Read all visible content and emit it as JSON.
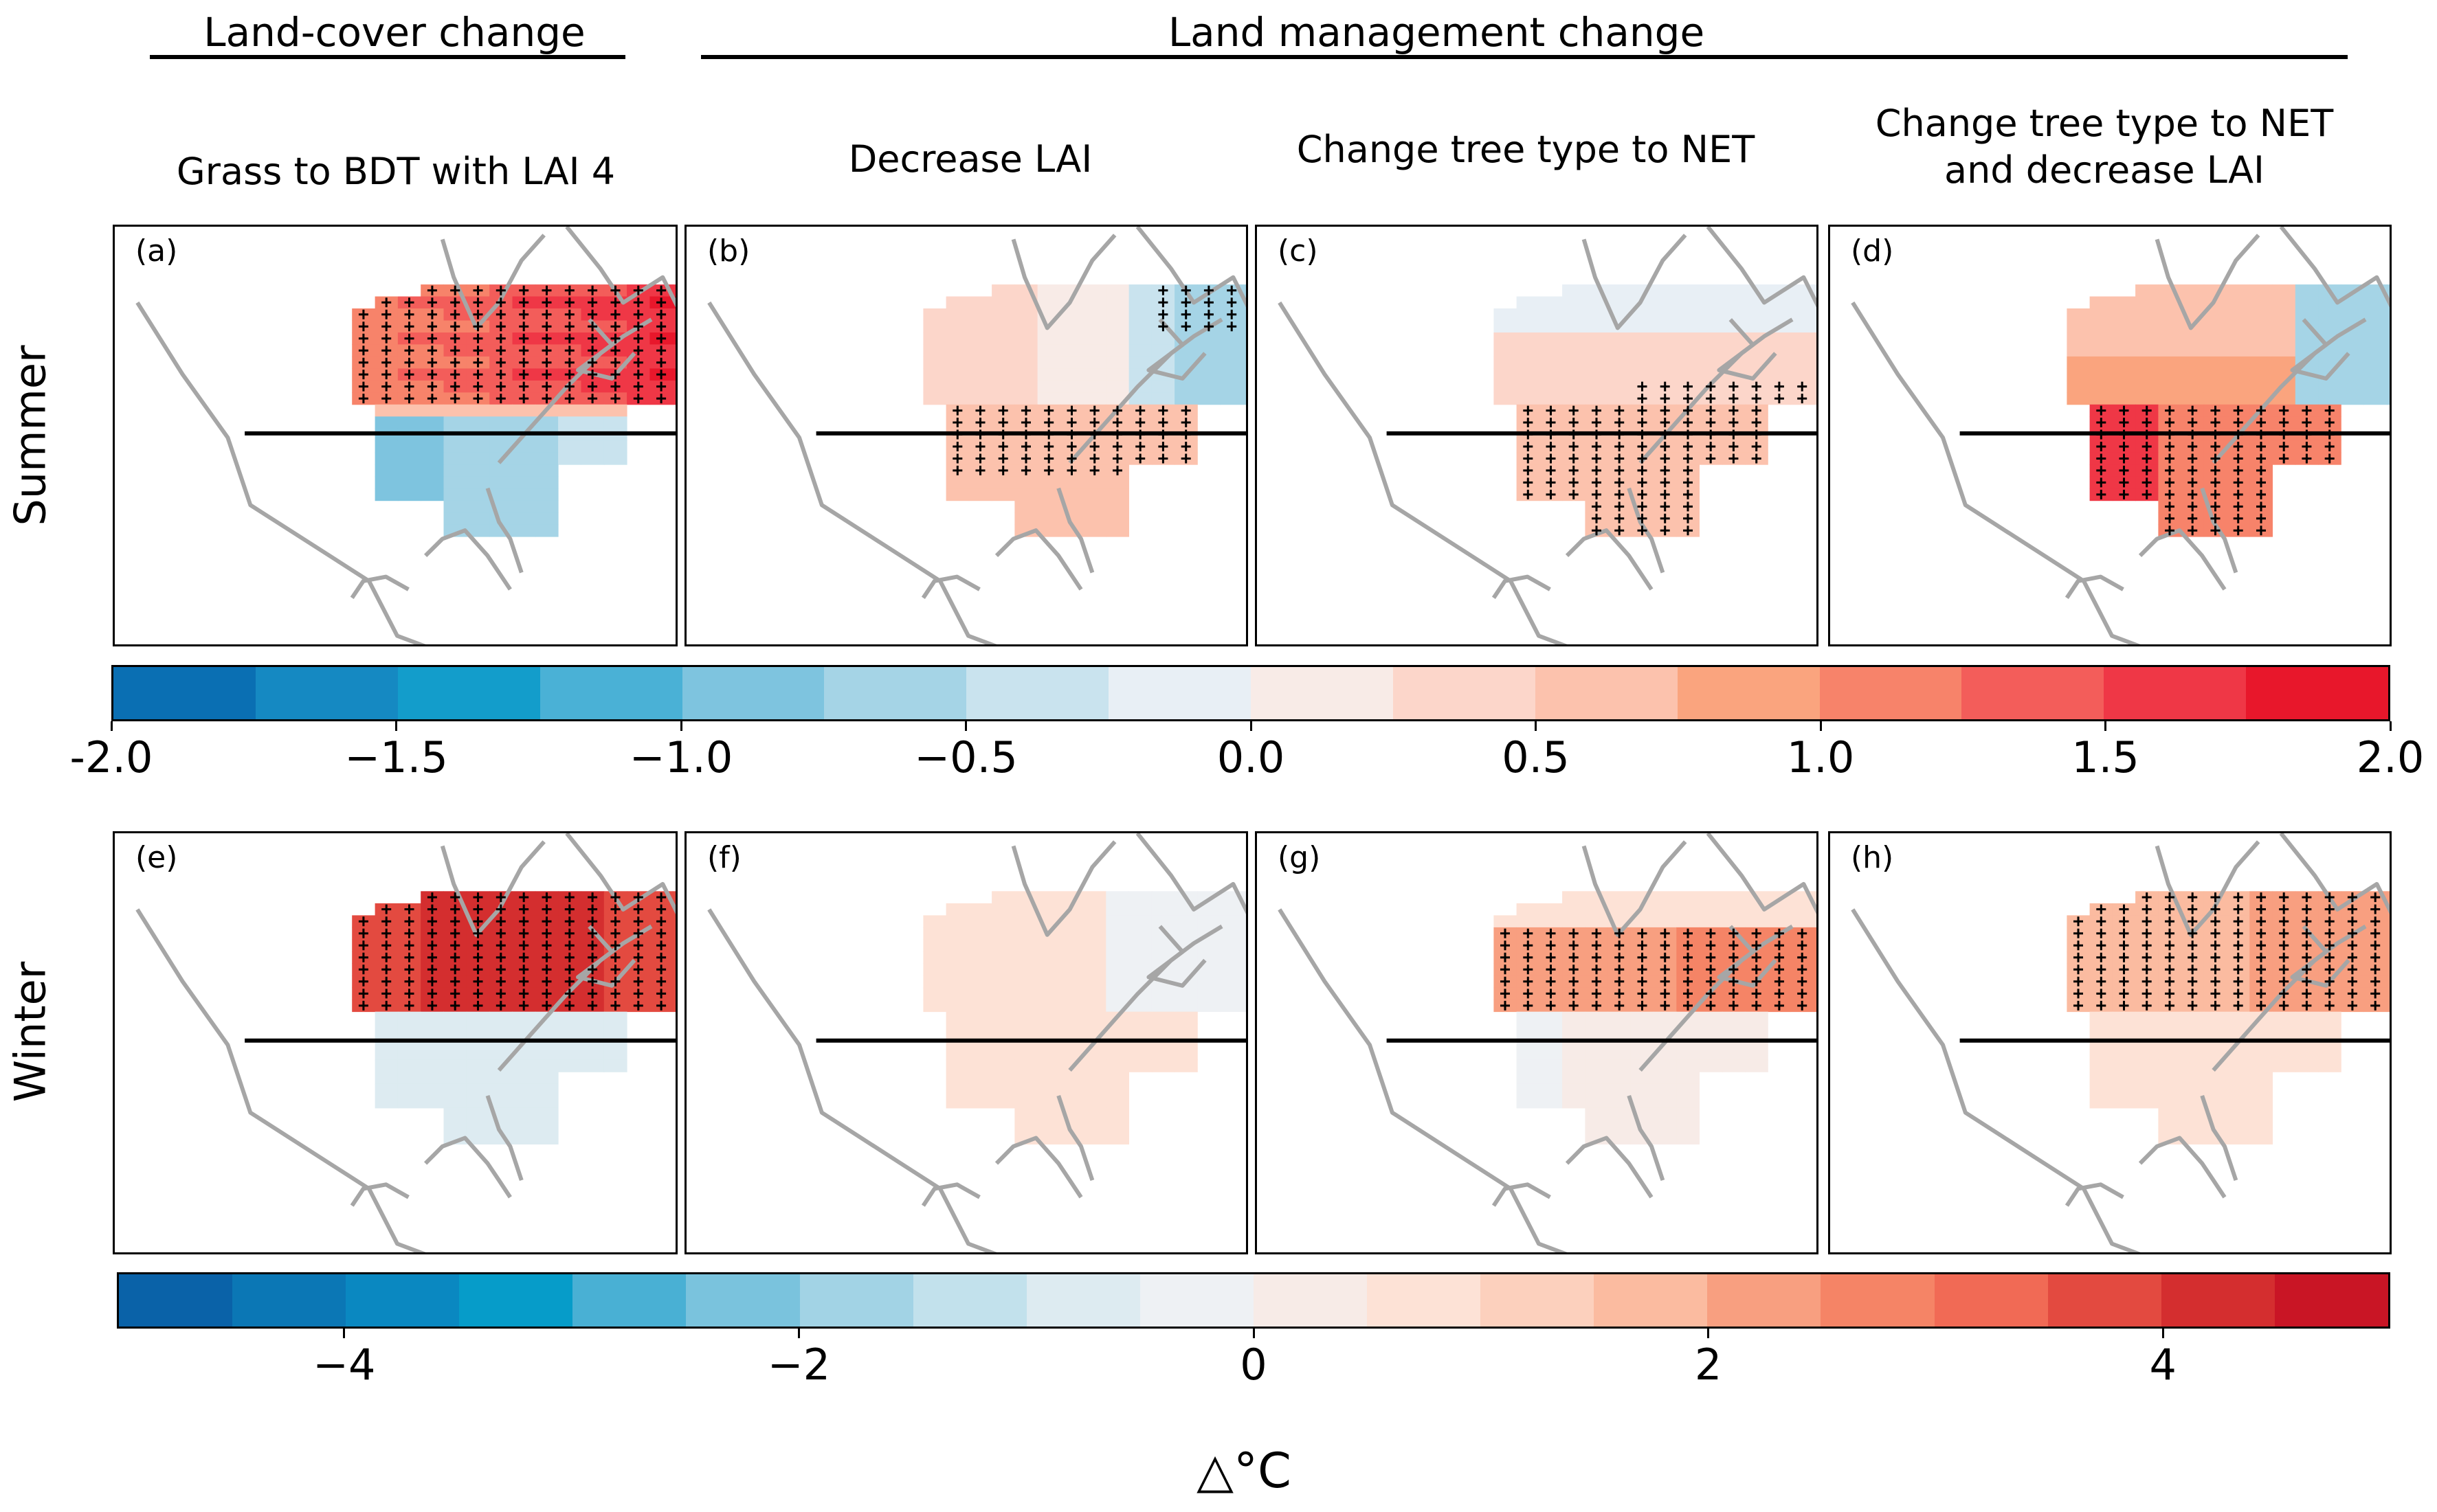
{
  "chart_data": {
    "type": "heatmap",
    "headers": {
      "land_cover": "Land-cover change",
      "land_management": "Land management change"
    },
    "columns": [
      "Grass to BDT with LAI 4",
      "Decrease LAI",
      "Change tree type to NET",
      "Change tree type to NET\nand decrease LAI"
    ],
    "rows": [
      "Summer",
      "Winter"
    ],
    "panels": [
      {
        "label": "(a)",
        "row": "Summer",
        "column": "Grass to BDT with LAI 4"
      },
      {
        "label": "(b)",
        "row": "Summer",
        "column": "Decrease LAI"
      },
      {
        "label": "(c)",
        "row": "Summer",
        "column": "Change tree type to NET"
      },
      {
        "label": "(d)",
        "row": "Summer",
        "column": "Change tree type to NET and decrease LAI"
      },
      {
        "label": "(e)",
        "row": "Winter",
        "column": "Grass to BDT with LAI 4"
      },
      {
        "label": "(f)",
        "row": "Winter",
        "column": "Decrease LAI"
      },
      {
        "label": "(g)",
        "row": "Winter",
        "column": "Change tree type to NET"
      },
      {
        "label": "(h)",
        "row": "Winter",
        "column": "Change tree type to NET and decrease LAI"
      }
    ],
    "colorbars": [
      {
        "row": "Summer",
        "range": [
          -2.0,
          2.0
        ],
        "ticks": [
          "-2.0",
          "−1.5",
          "−1.0",
          "−0.5",
          "0.0",
          "0.5",
          "1.0",
          "1.5",
          "2.0"
        ],
        "colors": [
          "#0a6fb3",
          "#1589c2",
          "#139dcb",
          "#4ab1d6",
          "#7ec4df",
          "#a5d4e6",
          "#c9e3ee",
          "#e8eff5",
          "#f8ebe7",
          "#fcd6ca",
          "#fcc2ad",
          "#faa47e",
          "#f7836a",
          "#f35d5a",
          "#ef3746",
          "#e8172b"
        ]
      },
      {
        "row": "Winter",
        "range": [
          -5,
          5
        ],
        "ticks": [
          "−4",
          "−2",
          "0",
          "2",
          "4"
        ],
        "colors": [
          "#0a62a8",
          "#0b77b5",
          "#0a88c1",
          "#069cc9",
          "#49b0d4",
          "#7ac3dd",
          "#a2d3e5",
          "#c2e1ec",
          "#ddebf1",
          "#eef1f4",
          "#f7ebe7",
          "#fde2d6",
          "#fcd0bd",
          "#fbbba0",
          "#f89f80",
          "#f58466",
          "#f16a55",
          "#e34a40",
          "#d42e2f",
          "#c91525"
        ]
      }
    ],
    "unit_label": "△°C"
  },
  "colors": {
    "coast": "#a6a6a6",
    "stipple": "#000000"
  }
}
